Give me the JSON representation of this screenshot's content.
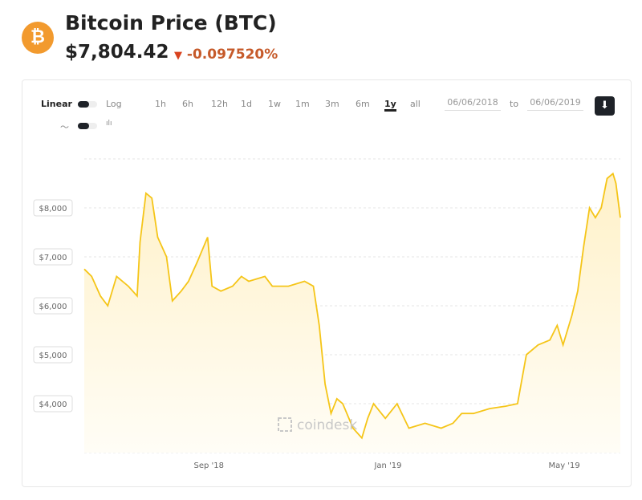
{
  "header": {
    "title": "Bitcoin Price",
    "ticker": "(BTC)",
    "price": "$7,804.42",
    "change": "-0.097520%",
    "change_icon": "triangle-down-icon",
    "logo": "bitcoin-logo",
    "logo_glyph": "₿"
  },
  "controls": {
    "linear": "Linear",
    "log": "Log",
    "ranges": [
      "1h",
      "6h",
      "12h",
      "1d",
      "1w",
      "1m",
      "3m",
      "6m",
      "1y",
      "all"
    ],
    "active_range": "1y",
    "date_from": "06/06/2018",
    "date_to": "06/06/2019",
    "date_sep": "to",
    "download_icon": "download-icon",
    "line_icon": "line-chart-icon",
    "candle_icon": "candlestick-icon"
  },
  "watermark": "coindesk",
  "colors": {
    "line": "#f5c518",
    "fill": "#fff6dc",
    "accent": "#f29a2e",
    "negative": "#c65a2a"
  },
  "chart_data": {
    "type": "area",
    "xlabel": "",
    "ylabel": "",
    "ylim": [
      3000,
      9000
    ],
    "y_ticks": [
      4000,
      5000,
      6000,
      7000,
      8000
    ],
    "y_tick_labels": [
      "$4,000",
      "$5,000",
      "$6,000",
      "$7,000",
      "$8,000"
    ],
    "x_ticks": [
      "2018-09-01",
      "2019-01-01",
      "2019-05-01"
    ],
    "x_tick_labels": [
      "Sep '18",
      "Jan '19",
      "May '19"
    ],
    "xlim": [
      "2018-06-06",
      "2019-06-06"
    ],
    "grid": "horizontal dashed",
    "series": [
      {
        "points": [
          [
            "2018-06-06",
            6750
          ],
          [
            "2018-06-11",
            6600
          ],
          [
            "2018-06-17",
            6200
          ],
          [
            "2018-06-22",
            6000
          ],
          [
            "2018-06-28",
            6600
          ],
          [
            "2018-07-06",
            6400
          ],
          [
            "2018-07-12",
            6200
          ],
          [
            "2018-07-14",
            7300
          ],
          [
            "2018-07-18",
            8300
          ],
          [
            "2018-07-22",
            8200
          ],
          [
            "2018-07-26",
            7400
          ],
          [
            "2018-08-01",
            7000
          ],
          [
            "2018-08-05",
            6100
          ],
          [
            "2018-08-11",
            6300
          ],
          [
            "2018-08-16",
            6500
          ],
          [
            "2018-08-22",
            6900
          ],
          [
            "2018-08-29",
            7400
          ],
          [
            "2018-09-01",
            6400
          ],
          [
            "2018-09-07",
            6300
          ],
          [
            "2018-09-15",
            6400
          ],
          [
            "2018-09-21",
            6600
          ],
          [
            "2018-09-26",
            6500
          ],
          [
            "2018-10-07",
            6600
          ],
          [
            "2018-10-12",
            6400
          ],
          [
            "2018-10-23",
            6400
          ],
          [
            "2018-11-03",
            6500
          ],
          [
            "2018-11-09",
            6400
          ],
          [
            "2018-11-13",
            5600
          ],
          [
            "2018-11-17",
            4400
          ],
          [
            "2018-11-21",
            3800
          ],
          [
            "2018-11-25",
            4100
          ],
          [
            "2018-11-29",
            4000
          ],
          [
            "2018-12-06",
            3500
          ],
          [
            "2018-12-12",
            3300
          ],
          [
            "2018-12-16",
            3700
          ],
          [
            "2018-12-20",
            4000
          ],
          [
            "2018-12-28",
            3700
          ],
          [
            "2019-01-05",
            4000
          ],
          [
            "2019-01-13",
            3500
          ],
          [
            "2019-01-24",
            3600
          ],
          [
            "2019-02-04",
            3500
          ],
          [
            "2019-02-12",
            3600
          ],
          [
            "2019-02-18",
            3800
          ],
          [
            "2019-02-26",
            3800
          ],
          [
            "2019-03-09",
            3900
          ],
          [
            "2019-03-20",
            3950
          ],
          [
            "2019-03-28",
            4000
          ],
          [
            "2019-04-03",
            5000
          ],
          [
            "2019-04-11",
            5200
          ],
          [
            "2019-04-19",
            5300
          ],
          [
            "2019-04-24",
            5600
          ],
          [
            "2019-04-28",
            5200
          ],
          [
            "2019-05-04",
            5800
          ],
          [
            "2019-05-08",
            6300
          ],
          [
            "2019-05-12",
            7200
          ],
          [
            "2019-05-16",
            8000
          ],
          [
            "2019-05-20",
            7800
          ],
          [
            "2019-05-24",
            8000
          ],
          [
            "2019-05-28",
            8600
          ],
          [
            "2019-06-01",
            8700
          ],
          [
            "2019-06-03",
            8500
          ],
          [
            "2019-06-06",
            7800
          ]
        ]
      }
    ]
  }
}
